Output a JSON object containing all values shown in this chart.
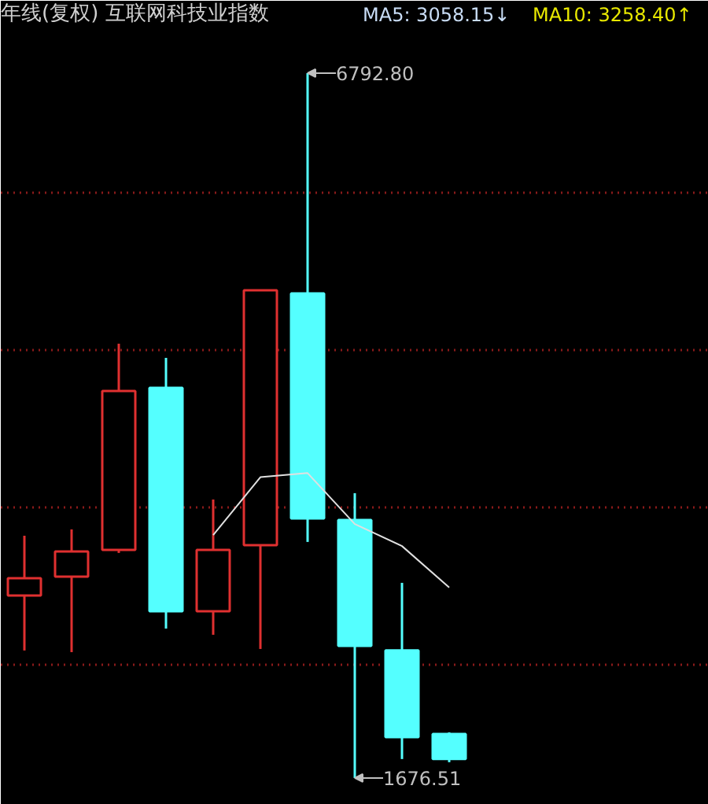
{
  "chart_data": {
    "type": "candlestick",
    "title": "年线(复权) 互联网科技业指数",
    "annotations": [
      "MA5: 3058.15↓",
      "MA10: 3258.40↑",
      "6792.80",
      "1676.51"
    ],
    "categories": [
      null,
      null,
      null,
      null,
      null,
      null,
      null,
      null,
      null,
      null
    ],
    "ohlc": [
      [
        3001,
        3435,
        2602,
        3127
      ],
      [
        3138,
        3481,
        2590,
        3321
      ],
      [
        3332,
        4829,
        3310,
        4486
      ],
      [
        4509,
        4726,
        2761,
        2887
      ],
      [
        2887,
        3698,
        2716,
        3332
      ],
      [
        3367,
        5217,
        2613,
        5217
      ],
      [
        5194,
        6792.8,
        3390,
        3561
      ],
      [
        3549,
        3744,
        1676.51,
        2636
      ],
      [
        2602,
        3093,
        1814,
        1973
      ],
      [
        1996,
        2008,
        1791,
        1814
      ]
    ],
    "colors": [
      "#e03030",
      "#e03030",
      "#e03030",
      "#54ffff",
      "#e03030",
      "#e03030",
      "#54ffff",
      "#54ffff",
      "#54ffff",
      "#54ffff"
    ],
    "series": [
      {
        "type": "line",
        "color": "#e0e0e0",
        "values": [
          null,
          null,
          null,
          null,
          3440,
          3860,
          3890,
          3520,
          3360,
          3060
        ]
      }
    ],
    "ylim": [
      1482,
      7318
    ],
    "yticks": [
      {
        "value": 2499,
        "label": null
      },
      {
        "value": 3641,
        "label": null
      },
      {
        "value": 4783,
        "label": null
      },
      {
        "value": 5925,
        "label": null
      }
    ],
    "grid": "y",
    "tick_labels": false
  }
}
